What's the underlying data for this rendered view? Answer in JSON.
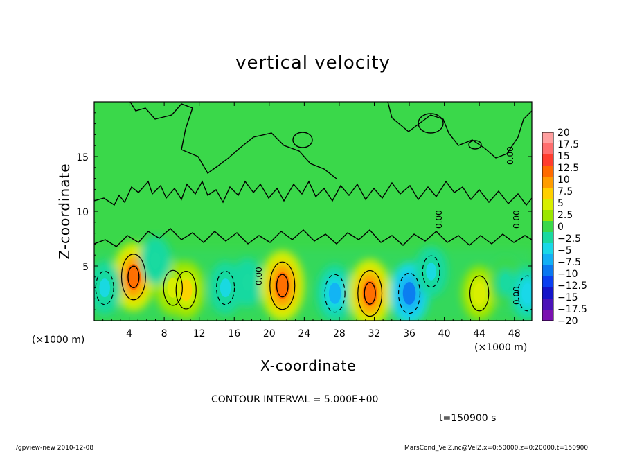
{
  "chart_data": {
    "type": "heatmap",
    "title": "vertical velocity",
    "xlabel": "X-coordinate",
    "ylabel": "Z-coordinate",
    "x_unit": "(×1000 m)",
    "xlim": [
      0,
      50
    ],
    "ylim": [
      0,
      20
    ],
    "x_ticks": [
      "4",
      "8",
      "12",
      "16",
      "20",
      "24",
      "28",
      "32",
      "36",
      "40",
      "44",
      "48"
    ],
    "y_ticks": [
      "5",
      "10",
      "15"
    ],
    "colorbar_levels": [
      "20",
      "17.5",
      "15",
      "12.5",
      "10",
      "7.5",
      "5",
      "2.5",
      "0",
      "−2.5",
      "−5",
      "−7.5",
      "−10",
      "−12.5",
      "−15",
      "−17.5",
      "−20"
    ],
    "colorbar_colors": [
      "#ff9f9f",
      "#ff6e6e",
      "#ff3d2e",
      "#ff6a00",
      "#ff9c00",
      "#ffd000",
      "#d8ee00",
      "#9be600",
      "#3ad84a",
      "#19d9a0",
      "#19d8e8",
      "#12b0f5",
      "#0a78f0",
      "#0a3ff0",
      "#1414c8",
      "#4a12b8",
      "#7a10b0"
    ],
    "contour_interval": "CONTOUR INTERVAL = 5.000E+00",
    "contour_labels": [
      "0.00",
      "0.00",
      "0.00",
      "0.00",
      "0.00"
    ],
    "cells": [
      {
        "x": 4.5,
        "z": 4.0,
        "w": 12.0
      },
      {
        "x": 9.0,
        "z": 3.0,
        "w": 6.0
      },
      {
        "x": 10.5,
        "z": 2.8,
        "w": 7.5
      },
      {
        "x": 1.2,
        "z": 3.0,
        "w": -5.0
      },
      {
        "x": 7.0,
        "z": 5.5,
        "w": -3.0
      },
      {
        "x": 15.0,
        "z": 3.0,
        "w": -5.0
      },
      {
        "x": 17.5,
        "z": 3.5,
        "w": -3.0
      },
      {
        "x": 21.5,
        "z": 3.2,
        "w": 13.0
      },
      {
        "x": 27.5,
        "z": 2.5,
        "w": -7.5
      },
      {
        "x": 31.5,
        "z": 2.5,
        "w": 12.0
      },
      {
        "x": 36.0,
        "z": 2.5,
        "w": -9.0
      },
      {
        "x": 38.5,
        "z": 4.5,
        "w": -4.0
      },
      {
        "x": 44.0,
        "z": 2.5,
        "w": 6.0
      },
      {
        "x": 47.0,
        "z": 3.5,
        "w": -2.5
      },
      {
        "x": 49.5,
        "z": 2.5,
        "w": -6.0
      }
    ]
  },
  "time_label": "t=150900 s",
  "footer_left": "./gpview-new   2010-12-08",
  "footer_right": "MarsCond_VelZ.nc@VelZ,x=0:50000,z=0:20000,t=150900"
}
